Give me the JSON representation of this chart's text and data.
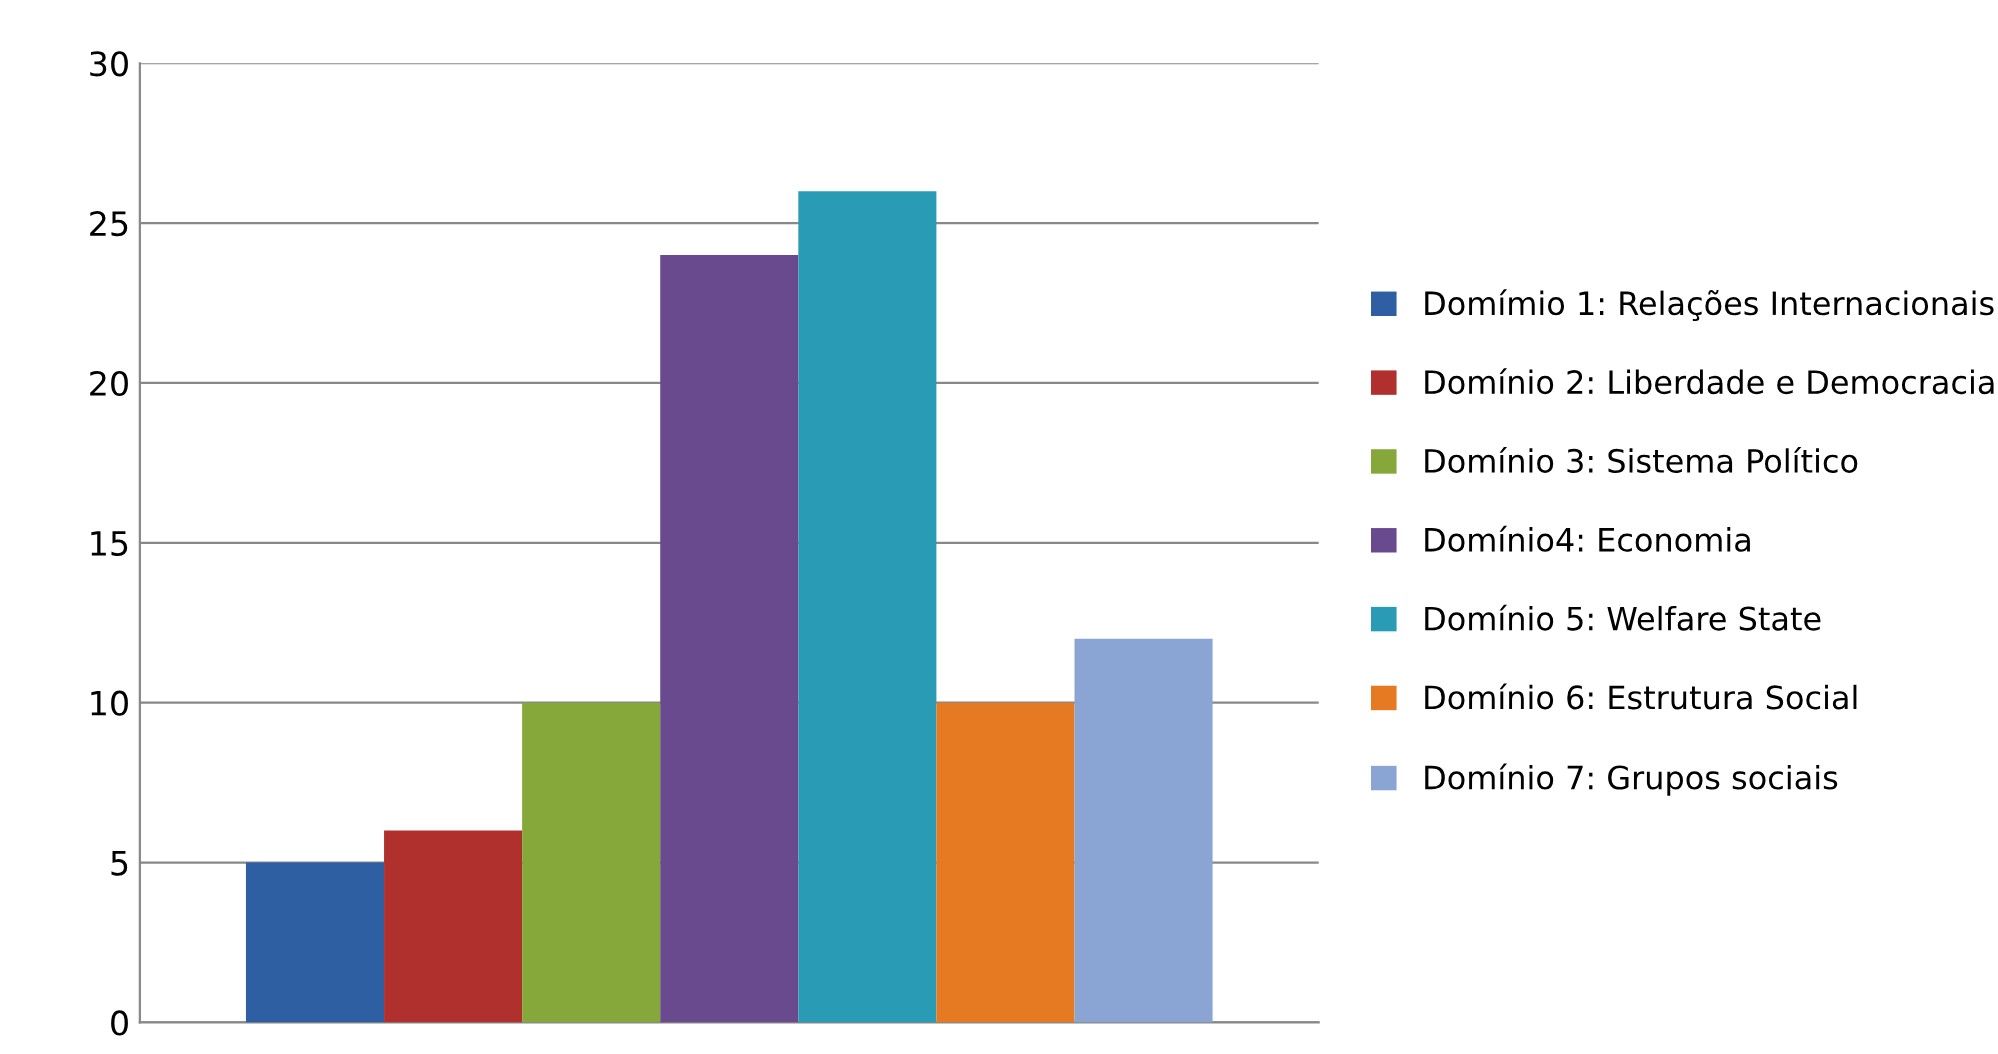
{
  "chart_data": {
    "type": "bar",
    "categories": [
      null
    ],
    "series": [
      {
        "name": "Domímio 1: Relações Internacionais",
        "color": "#2e5fa3",
        "values": [
          5
        ]
      },
      {
        "name": "Domínio 2: Liberdade e Democracia",
        "color": "#b0302d",
        "values": [
          6
        ]
      },
      {
        "name": "Domínio 3: Sistema Político",
        "color": "#86a83a",
        "values": [
          10
        ]
      },
      {
        "name": "Domínio4: Economia",
        "color": "#6a4a8f",
        "values": [
          24
        ]
      },
      {
        "name": "Domínio 5: Welfare State",
        "color": "#2a9bb5",
        "values": [
          26
        ]
      },
      {
        "name": "Domínio 6: Estrutura Social",
        "color": "#e67a22",
        "values": [
          10
        ]
      },
      {
        "name": "Domínio 7: Grupos sociais",
        "color": "#8aa5d4",
        "values": [
          12
        ]
      }
    ],
    "ylim": [
      0,
      30
    ],
    "yticks": [
      0,
      5,
      10,
      15,
      20,
      25,
      30
    ],
    "grid": "y",
    "legend": "right"
  }
}
